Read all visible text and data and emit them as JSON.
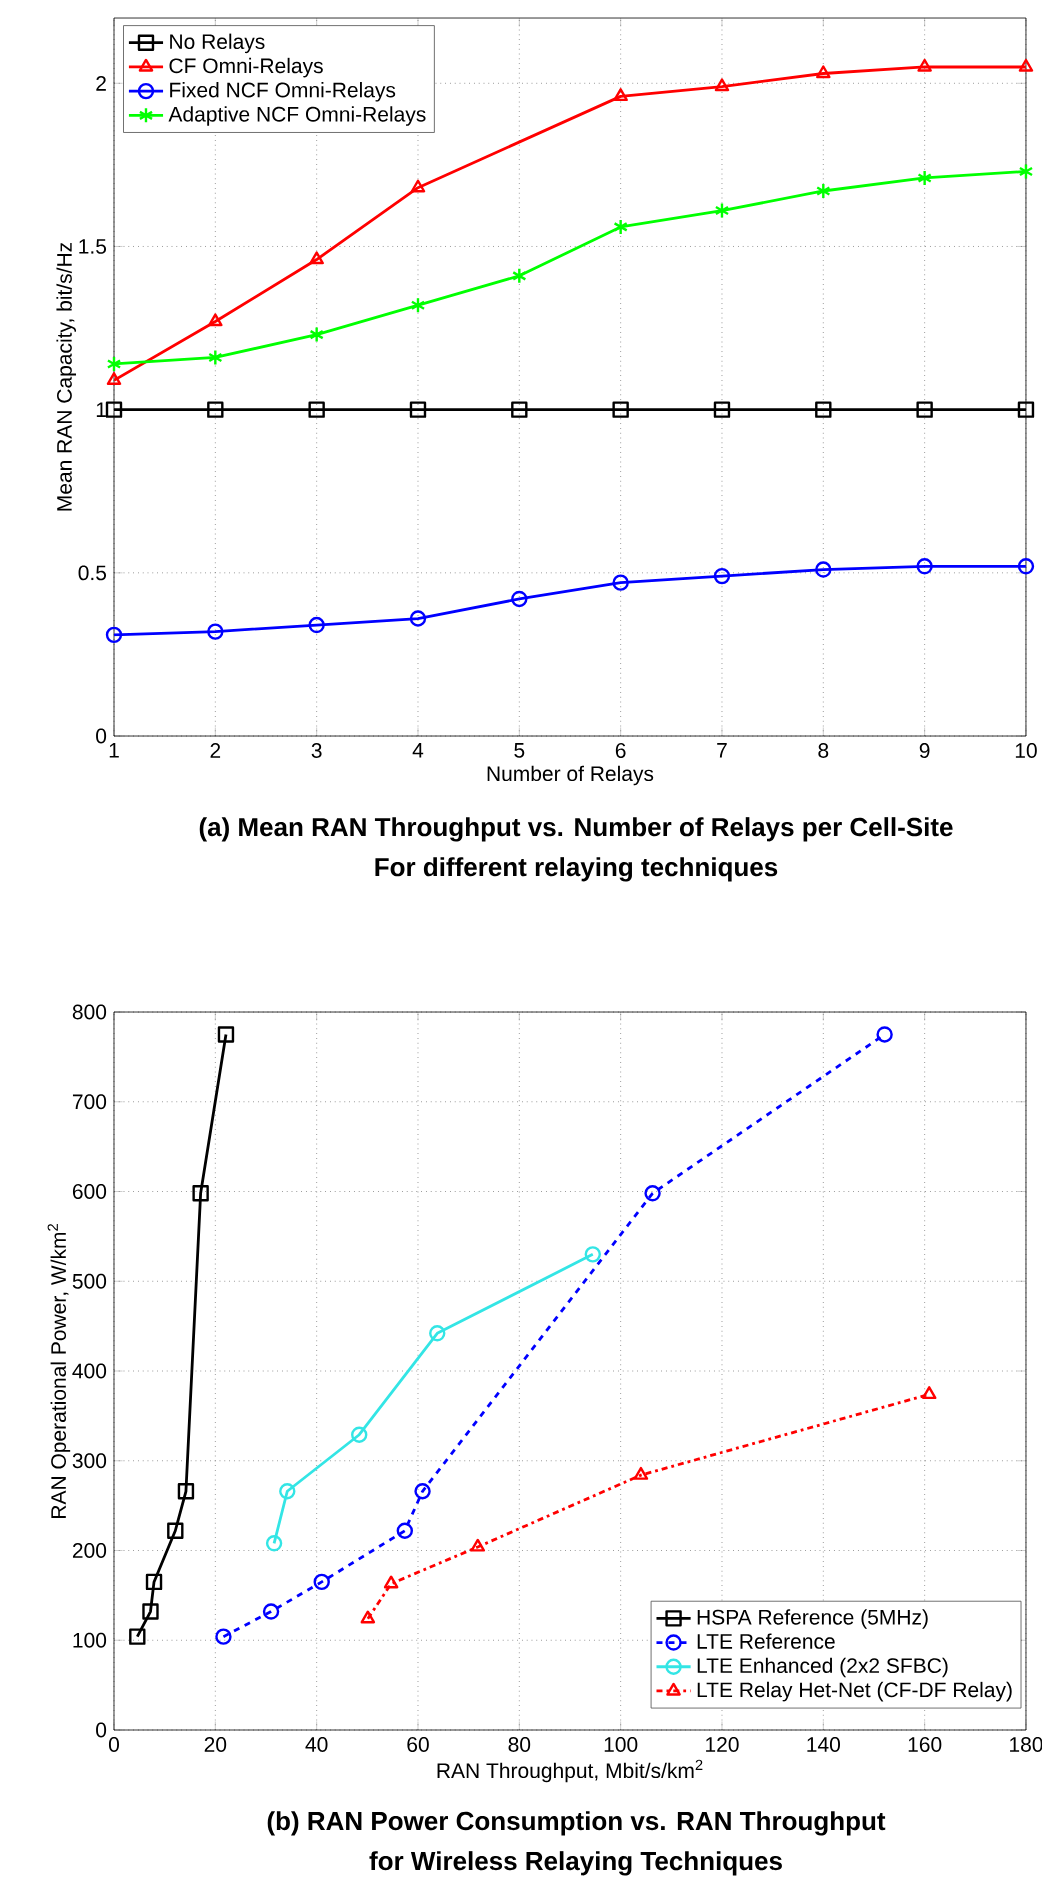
{
  "chart_data": [
    {
      "type": "line",
      "title": "(a)  Mean RAN Throughput  vs. Number of Relays per Cell-Site",
      "subtitle": "For different relaying techniques",
      "xlabel": "Number of Relays",
      "ylabel": "Mean RAN Capacity, bit/s/Hz",
      "x": [
        1,
        2,
        3,
        4,
        5,
        6,
        7,
        8,
        9,
        10
      ],
      "xlim": [
        1,
        10
      ],
      "xticks": [
        1,
        2,
        3,
        4,
        5,
        6,
        7,
        8,
        9,
        10
      ],
      "ylim": [
        0,
        2.2
      ],
      "yticks": [
        0,
        0.5,
        1,
        1.5,
        2
      ],
      "grid": true,
      "legend": "top left",
      "series": [
        {
          "name": "No Relays",
          "color": "#000000",
          "marker": "square",
          "line_style": "solid",
          "values": [
            1,
            1,
            1,
            1,
            1,
            1,
            1,
            1,
            1,
            1
          ]
        },
        {
          "name": "CF Omni-Relays",
          "color": "#ff0000",
          "marker": "triangle",
          "line_style": "solid",
          "x": [
            1,
            2,
            3,
            4,
            6,
            7,
            8,
            9,
            10
          ],
          "values": [
            1.09,
            1.27,
            1.46,
            1.68,
            1.96,
            1.99,
            2.03,
            2.05,
            2.05
          ]
        },
        {
          "name": "Fixed NCF Omni-Relays",
          "color": "#0000ff",
          "marker": "circle",
          "line_style": "solid",
          "values": [
            0.31,
            0.32,
            0.34,
            0.36,
            0.42,
            0.47,
            0.49,
            0.51,
            0.52,
            0.52
          ]
        },
        {
          "name": "Adaptive NCF Omni-Relays",
          "color": "#00ff00",
          "marker": "cross",
          "line_style": "solid",
          "values": [
            1.14,
            1.16,
            1.23,
            1.32,
            1.41,
            1.56,
            1.61,
            1.67,
            1.71,
            1.73
          ]
        }
      ]
    },
    {
      "type": "line",
      "title": "(b) RAN Power Consumption  vs. RAN Throughput",
      "subtitle": "for Wireless Relaying Techniques",
      "xlabel": "RAN Throughput, Mbit/s/km$^{2}$",
      "ylabel": "RAN Operational Power, W/km$^{2}$",
      "xlim": [
        0,
        180
      ],
      "xticks": [
        0,
        20,
        40,
        60,
        80,
        100,
        120,
        140,
        160,
        180
      ],
      "ylim": [
        0,
        800
      ],
      "yticks": [
        0,
        100,
        200,
        300,
        400,
        500,
        600,
        700,
        800
      ],
      "grid": true,
      "legend": "bottom right",
      "series": [
        {
          "name": "HSPA Reference (5MHz)",
          "color": "#000000",
          "marker": "square",
          "line_style": "solid",
          "x": [
            4.6,
            7.2,
            7.9,
            12.1,
            14.2,
            17.1,
            22.1
          ],
          "values": [
            104,
            132,
            165,
            222,
            266,
            598,
            775
          ]
        },
        {
          "name": "LTE Reference",
          "color": "#0000ff",
          "marker": "circle",
          "line_style": "dashed",
          "x": [
            21.6,
            31,
            41,
            57.4,
            60.9,
            106.3,
            152.1
          ],
          "values": [
            104,
            132,
            165,
            222,
            266,
            598,
            775
          ]
        },
        {
          "name": "LTE Enhanced (2x2 SFBC)",
          "color": "#33e5e5",
          "marker": "circle",
          "line_style": "solid",
          "x": [
            31.6,
            34.2,
            48.4,
            63.8,
            94.5
          ],
          "values": [
            208,
            266,
            329,
            442,
            530
          ]
        },
        {
          "name": "LTE Relay Het-Net (CF-DF Relay)",
          "color": "#ff0000",
          "marker": "triangle",
          "line_style": "dashdot",
          "x": [
            50.1,
            54.7,
            71.8,
            104,
            160.9
          ],
          "values": [
            124,
            163,
            204,
            284,
            374
          ]
        }
      ]
    }
  ]
}
